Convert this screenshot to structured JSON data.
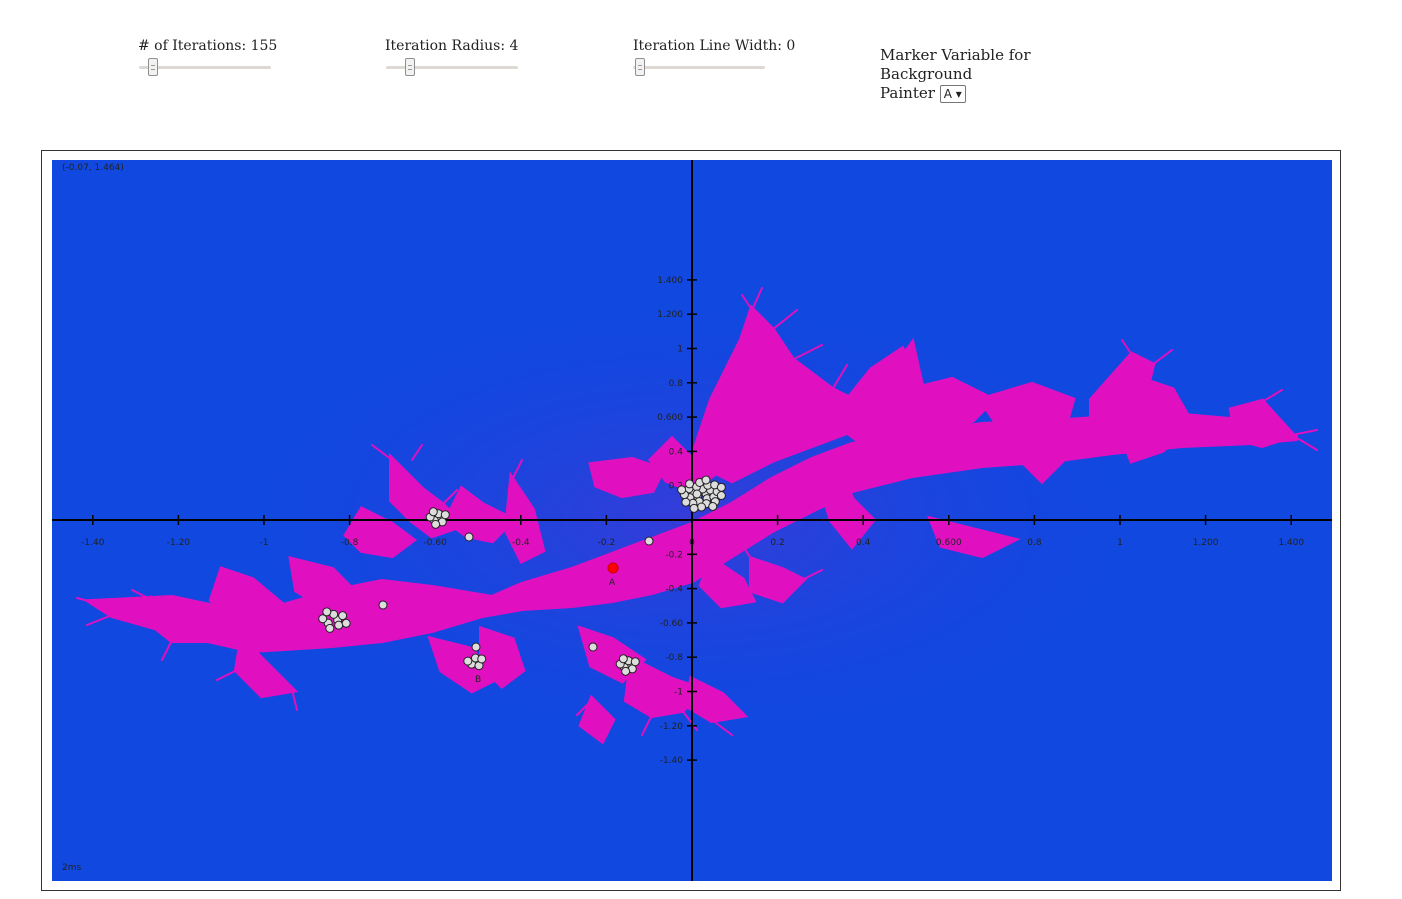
{
  "controls": {
    "iterations": {
      "label": "# of Iterations: 155",
      "value": 155
    },
    "radius": {
      "label": "Iteration Radius: 4",
      "value": 4
    },
    "line_width": {
      "label": "Iteration Line Width: 0",
      "value": 0
    },
    "marker": {
      "label_line1": "Marker Variable for Background",
      "label_line2": "Painter",
      "selected": "A",
      "arrow": "▾"
    }
  },
  "plot": {
    "coordinate_readout": "(-0.07, 1.464)",
    "timing": "2ms",
    "x_ticks": [
      "-1.40",
      "-1.20",
      "-1",
      "-0.8",
      "-0.60",
      "-0.4",
      "-0.2",
      "0",
      "0.2",
      "0.4",
      "0.600",
      "0.8",
      "1",
      "1.200",
      "1.400"
    ],
    "y_ticks": [
      "1.400",
      "1.200",
      "1",
      "0.8",
      "0.600",
      "0.4",
      "0.2",
      "-0.2",
      "-0.4",
      "-0.60",
      "-0.8",
      "-1",
      "-1.20",
      "-1.40"
    ],
    "points": [
      {
        "label": "A",
        "x": -0.18,
        "y": -0.2
      },
      {
        "label": "B",
        "x": -0.5,
        "y": -0.6
      }
    ],
    "colors": {
      "background": "#1048e0",
      "fractal": "#e010c0",
      "point_a": "#ff0000",
      "axes": "#000000"
    }
  }
}
